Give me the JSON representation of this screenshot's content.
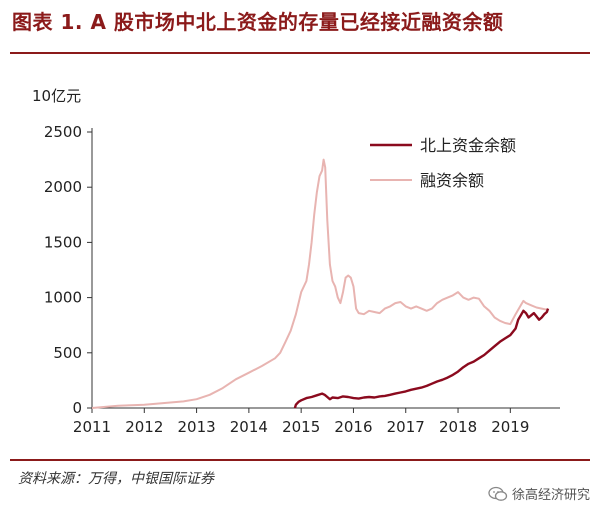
{
  "title": "图表 1. A 股市场中北上资金的存量已经接近融资余额",
  "unit_label": "10亿元",
  "source": "资料来源：万得，中银国际证券",
  "watermark": "徐高经济研究",
  "colors": {
    "title": "#8b1a1a",
    "north": "#8b0a1e",
    "margin": "#e8b4b1",
    "axis": "#333333"
  },
  "chart_data": {
    "type": "line",
    "xlim": [
      2011.0,
      2019.95
    ],
    "ylim": [
      0,
      2500
    ],
    "x_ticks": [
      2011,
      2012,
      2013,
      2014,
      2015,
      2016,
      2017,
      2018,
      2019
    ],
    "y_ticks": [
      0,
      500,
      1000,
      1500,
      2000,
      2500
    ],
    "legend_position": "top-right",
    "series": [
      {
        "name": "北上资金余额",
        "color": "#8b0a1e",
        "points": [
          [
            2014.88,
            0
          ],
          [
            2014.9,
            30
          ],
          [
            2014.95,
            55
          ],
          [
            2015.0,
            70
          ],
          [
            2015.1,
            90
          ],
          [
            2015.2,
            100
          ],
          [
            2015.3,
            115
          ],
          [
            2015.4,
            130
          ],
          [
            2015.45,
            120
          ],
          [
            2015.5,
            100
          ],
          [
            2015.55,
            80
          ],
          [
            2015.6,
            95
          ],
          [
            2015.7,
            90
          ],
          [
            2015.8,
            105
          ],
          [
            2015.9,
            100
          ],
          [
            2016.0,
            90
          ],
          [
            2016.1,
            85
          ],
          [
            2016.2,
            95
          ],
          [
            2016.3,
            100
          ],
          [
            2016.4,
            95
          ],
          [
            2016.5,
            105
          ],
          [
            2016.6,
            110
          ],
          [
            2016.7,
            120
          ],
          [
            2016.8,
            130
          ],
          [
            2016.9,
            140
          ],
          [
            2017.0,
            150
          ],
          [
            2017.1,
            165
          ],
          [
            2017.2,
            175
          ],
          [
            2017.3,
            185
          ],
          [
            2017.4,
            200
          ],
          [
            2017.5,
            220
          ],
          [
            2017.6,
            240
          ],
          [
            2017.7,
            255
          ],
          [
            2017.8,
            275
          ],
          [
            2017.9,
            300
          ],
          [
            2018.0,
            330
          ],
          [
            2018.1,
            370
          ],
          [
            2018.2,
            400
          ],
          [
            2018.3,
            420
          ],
          [
            2018.4,
            450
          ],
          [
            2018.5,
            480
          ],
          [
            2018.6,
            520
          ],
          [
            2018.7,
            560
          ],
          [
            2018.8,
            600
          ],
          [
            2018.9,
            630
          ],
          [
            2019.0,
            660
          ],
          [
            2019.1,
            720
          ],
          [
            2019.15,
            800
          ],
          [
            2019.2,
            840
          ],
          [
            2019.25,
            880
          ],
          [
            2019.3,
            860
          ],
          [
            2019.35,
            820
          ],
          [
            2019.4,
            840
          ],
          [
            2019.45,
            860
          ],
          [
            2019.5,
            830
          ],
          [
            2019.55,
            800
          ],
          [
            2019.6,
            820
          ],
          [
            2019.65,
            850
          ],
          [
            2019.7,
            870
          ],
          [
            2019.72,
            900
          ]
        ]
      },
      {
        "name": "融资余额",
        "color": "#e8b4b1",
        "points": [
          [
            2011.0,
            0
          ],
          [
            2011.25,
            10
          ],
          [
            2011.5,
            20
          ],
          [
            2011.75,
            25
          ],
          [
            2012.0,
            30
          ],
          [
            2012.25,
            40
          ],
          [
            2012.5,
            50
          ],
          [
            2012.75,
            60
          ],
          [
            2013.0,
            80
          ],
          [
            2013.25,
            120
          ],
          [
            2013.5,
            180
          ],
          [
            2013.75,
            260
          ],
          [
            2014.0,
            320
          ],
          [
            2014.25,
            380
          ],
          [
            2014.5,
            450
          ],
          [
            2014.6,
            500
          ],
          [
            2014.7,
            600
          ],
          [
            2014.8,
            700
          ],
          [
            2014.9,
            850
          ],
          [
            2015.0,
            1050
          ],
          [
            2015.1,
            1150
          ],
          [
            2015.15,
            1300
          ],
          [
            2015.2,
            1500
          ],
          [
            2015.25,
            1750
          ],
          [
            2015.3,
            1950
          ],
          [
            2015.35,
            2100
          ],
          [
            2015.4,
            2150
          ],
          [
            2015.43,
            2250
          ],
          [
            2015.46,
            2180
          ],
          [
            2015.5,
            1700
          ],
          [
            2015.55,
            1300
          ],
          [
            2015.6,
            1150
          ],
          [
            2015.65,
            1100
          ],
          [
            2015.7,
            1000
          ],
          [
            2015.75,
            950
          ],
          [
            2015.8,
            1050
          ],
          [
            2015.85,
            1180
          ],
          [
            2015.9,
            1200
          ],
          [
            2015.95,
            1180
          ],
          [
            2016.0,
            1100
          ],
          [
            2016.05,
            900
          ],
          [
            2016.1,
            860
          ],
          [
            2016.2,
            850
          ],
          [
            2016.3,
            880
          ],
          [
            2016.4,
            870
          ],
          [
            2016.5,
            860
          ],
          [
            2016.6,
            900
          ],
          [
            2016.7,
            920
          ],
          [
            2016.8,
            950
          ],
          [
            2016.9,
            960
          ],
          [
            2017.0,
            920
          ],
          [
            2017.1,
            900
          ],
          [
            2017.2,
            920
          ],
          [
            2017.3,
            900
          ],
          [
            2017.4,
            880
          ],
          [
            2017.5,
            900
          ],
          [
            2017.6,
            950
          ],
          [
            2017.7,
            980
          ],
          [
            2017.8,
            1000
          ],
          [
            2017.9,
            1020
          ],
          [
            2018.0,
            1050
          ],
          [
            2018.1,
            1000
          ],
          [
            2018.2,
            980
          ],
          [
            2018.3,
            1000
          ],
          [
            2018.4,
            990
          ],
          [
            2018.5,
            920
          ],
          [
            2018.6,
            880
          ],
          [
            2018.7,
            820
          ],
          [
            2018.8,
            790
          ],
          [
            2018.9,
            770
          ],
          [
            2019.0,
            760
          ],
          [
            2019.1,
            850
          ],
          [
            2019.2,
            930
          ],
          [
            2019.25,
            970
          ],
          [
            2019.3,
            950
          ],
          [
            2019.4,
            930
          ],
          [
            2019.5,
            910
          ],
          [
            2019.6,
            900
          ],
          [
            2019.7,
            890
          ],
          [
            2019.72,
            900
          ]
        ]
      }
    ]
  }
}
